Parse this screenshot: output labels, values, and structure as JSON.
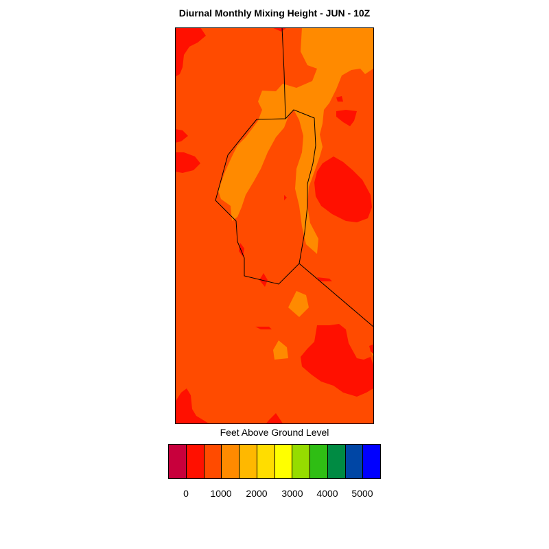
{
  "map": {
    "title": "Diurnal Monthly Mixing Height - JUN - 10Z",
    "colors": {
      "background_field": "#ff4b00",
      "lower_band": "#ff1000",
      "higher_band": "#ff8a00",
      "boundary_lines": "#000000"
    }
  },
  "legend": {
    "title": "Feet Above Ground Level",
    "colors": [
      "#c8003c",
      "#ff1000",
      "#ff4b00",
      "#ff8a00",
      "#ffb800",
      "#ffdd00",
      "#ffff00",
      "#96dc00",
      "#2fbe14",
      "#008b43",
      "#0046a5",
      "#0000ff"
    ],
    "tick_labels": [
      "0",
      "1000",
      "2000",
      "3000",
      "4000",
      "5000"
    ]
  }
}
